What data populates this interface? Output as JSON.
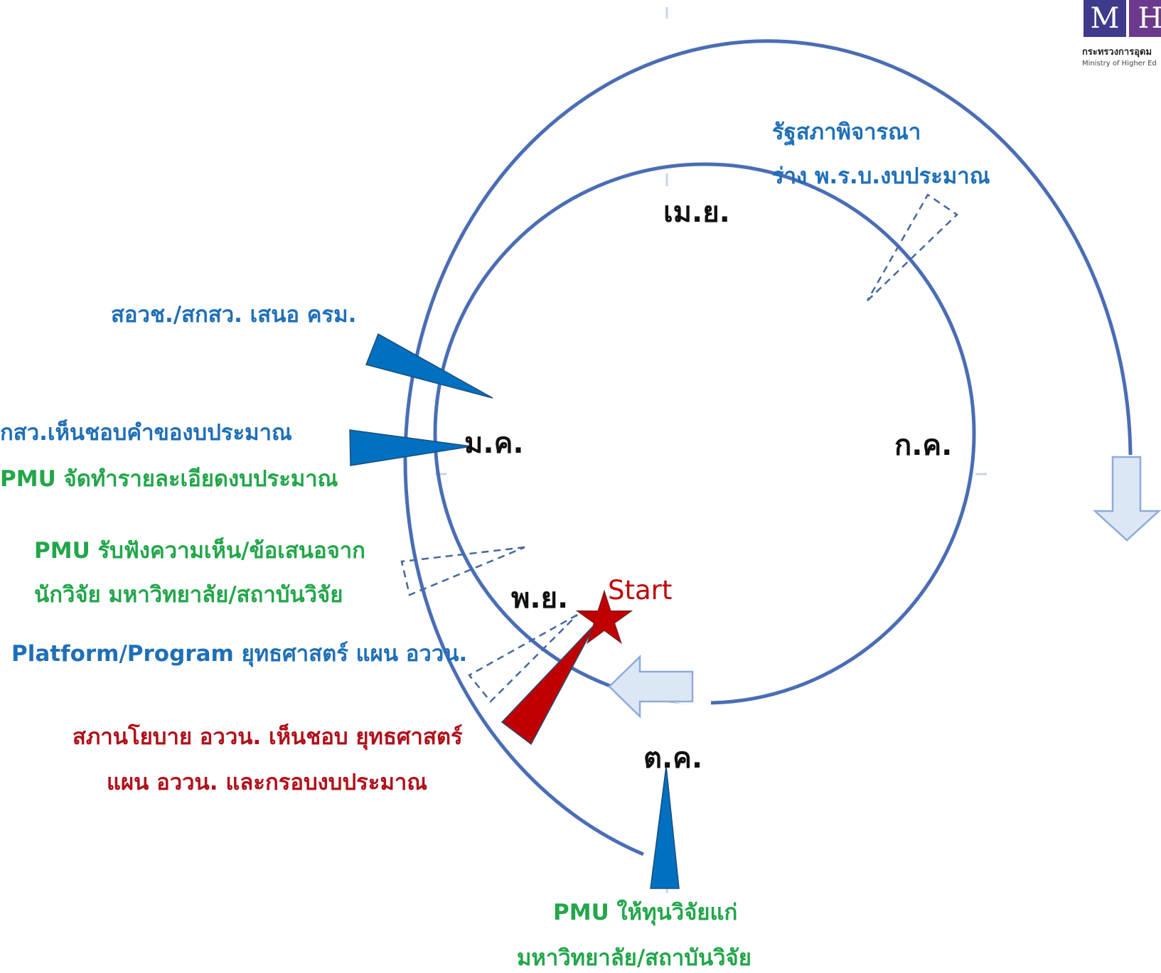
{
  "months": {
    "apr": "เม.ย.",
    "jan": "ม.ค.",
    "jul": "ก.ค.",
    "nov": "พ.ย.",
    "oct": "ต.ค."
  },
  "start_label": "Start",
  "annotations": {
    "parliament": [
      "รัฐสภาพิจารณา",
      "ร่าง พ.ร.บ.งบประมาณ"
    ],
    "propose_cabinet": "สอวช./สกสว. เสนอ ครม.",
    "tsri_approve": "กสว.เห็นชอบคำของบประมาณ",
    "pmu_budget": "PMU จัดทำรายละเอียดงบประมาณ",
    "pmu_listen": [
      "PMU รับฟังความเห็น/ข้อเสนอจาก",
      "นักวิจัย มหาวิทยาลัย/สถาบันวิจัย"
    ],
    "platform": "Platform/Program ยุทธศาสตร์ แผน อววน.",
    "council": [
      "สภานโยบาย อววน. เห็นชอบ ยุทธศาสตร์",
      "แผน อววน. และกรอบงบประมาณ"
    ],
    "pmu_fund": [
      "PMU ให้ทุนวิจัยแก่",
      "มหาวิทยาลัย/สถาบันวิจัย"
    ]
  },
  "logo": {
    "letter_m": "M",
    "letter_h": "H",
    "thai_text": "กระทรวงการอุดม",
    "english_text": "Ministry of Higher Ed"
  },
  "colors": {
    "ring": "#4A6DB5",
    "blue": "#1F6FB8",
    "green": "#22A64A",
    "red": "#B0101A",
    "arrow_fill": "#DCE7F5",
    "arrow_stroke": "#8FAADC"
  }
}
